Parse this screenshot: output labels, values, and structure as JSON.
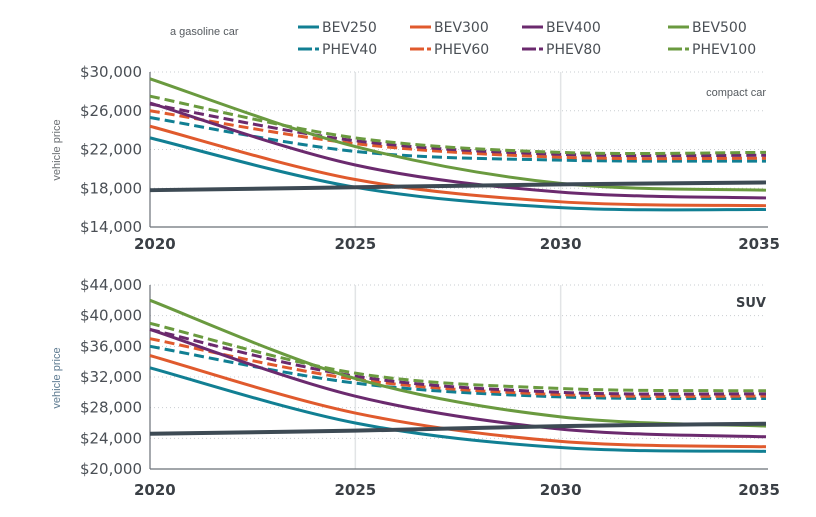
{
  "chart_data": [
    {
      "type": "line",
      "title": "compact car",
      "xlabel": "",
      "ylabel": "vehicle price",
      "x": [
        2020,
        2025,
        2030,
        2035
      ],
      "xlim": [
        2020,
        2035
      ],
      "ylim": [
        14000,
        30000
      ],
      "y_ticks": [
        14000,
        18000,
        22000,
        26000,
        30000
      ],
      "y_tick_labels": [
        "$14,000",
        "$18,000",
        "$22,000",
        "$26,000",
        "$30,000"
      ],
      "x_tick_labels": [
        "2020",
        "2025",
        "2030",
        "2035"
      ],
      "grid": "horizontal dotted, vertical at 2025 and 2030",
      "series": [
        {
          "name": "a gasoline car",
          "style": "solid-thick",
          "color": "#3d4a54",
          "values": [
            17800,
            18100,
            18400,
            18600
          ]
        },
        {
          "name": "BEV250",
          "style": "solid",
          "color": "#117f93",
          "values": [
            23200,
            18100,
            16000,
            15800
          ]
        },
        {
          "name": "BEV300",
          "style": "solid",
          "color": "#e05a2d",
          "values": [
            24400,
            18900,
            16600,
            16200
          ]
        },
        {
          "name": "BEV400",
          "style": "solid",
          "color": "#6b2a6e",
          "values": [
            26800,
            20400,
            17600,
            17000
          ]
        },
        {
          "name": "BEV500",
          "style": "solid",
          "color": "#6a9a3f",
          "values": [
            29300,
            22300,
            18500,
            17800
          ]
        },
        {
          "name": "PHEV40",
          "style": "dashed",
          "color": "#117f93",
          "values": [
            25300,
            21800,
            20900,
            20800
          ]
        },
        {
          "name": "PHEV60",
          "style": "dashed",
          "color": "#e05a2d",
          "values": [
            26000,
            22600,
            21200,
            21100
          ]
        },
        {
          "name": "PHEV80",
          "style": "dashed",
          "color": "#6b2a6e",
          "values": [
            26700,
            22900,
            21500,
            21400
          ]
        },
        {
          "name": "PHEV100",
          "style": "dashed",
          "color": "#6a9a3f",
          "values": [
            27500,
            23200,
            21700,
            21700
          ]
        }
      ]
    },
    {
      "type": "line",
      "title": "SUV",
      "xlabel": "",
      "ylabel": "vehicle price",
      "x": [
        2020,
        2025,
        2030,
        2035
      ],
      "xlim": [
        2020,
        2035
      ],
      "ylim": [
        20000,
        44000
      ],
      "y_ticks": [
        20000,
        24000,
        28000,
        32000,
        36000,
        40000,
        44000
      ],
      "y_tick_labels": [
        "$20,000",
        "$24,000",
        "$28,000",
        "$32,000",
        "$36,000",
        "$40,000",
        "$44,000"
      ],
      "x_tick_labels": [
        "2020",
        "2025",
        "2030",
        "2035"
      ],
      "grid": "horizontal dotted, vertical at 2025 and 2030",
      "series": [
        {
          "name": "a gasoline car",
          "style": "solid-thick",
          "color": "#3d4a54",
          "values": [
            24600,
            25000,
            25600,
            25900
          ]
        },
        {
          "name": "BEV250",
          "style": "solid",
          "color": "#117f93",
          "values": [
            33200,
            26000,
            22800,
            22300
          ]
        },
        {
          "name": "BEV300",
          "style": "solid",
          "color": "#e05a2d",
          "values": [
            34800,
            27300,
            23600,
            22900
          ]
        },
        {
          "name": "BEV400",
          "style": "solid",
          "color": "#6b2a6e",
          "values": [
            38200,
            29500,
            25200,
            24200
          ]
        },
        {
          "name": "BEV500",
          "style": "solid",
          "color": "#6a9a3f",
          "values": [
            42000,
            31800,
            26800,
            25600
          ]
        },
        {
          "name": "PHEV40",
          "style": "dashed",
          "color": "#117f93",
          "values": [
            36000,
            31200,
            29400,
            29200
          ]
        },
        {
          "name": "PHEV60",
          "style": "dashed",
          "color": "#e05a2d",
          "values": [
            37000,
            31700,
            29700,
            29500
          ]
        },
        {
          "name": "PHEV80",
          "style": "dashed",
          "color": "#6b2a6e",
          "values": [
            38200,
            32100,
            30000,
            29800
          ]
        },
        {
          "name": "PHEV100",
          "style": "dashed",
          "color": "#6a9a3f",
          "values": [
            39000,
            32500,
            30500,
            30200
          ]
        }
      ]
    }
  ],
  "legend": {
    "gas_label": "a gasoline car",
    "placement": "top",
    "items": [
      {
        "name": "BEV250",
        "style": "solid",
        "color": "#117f93"
      },
      {
        "name": "BEV300",
        "style": "solid",
        "color": "#e05a2d"
      },
      {
        "name": "BEV400",
        "style": "solid",
        "color": "#6b2a6e"
      },
      {
        "name": "BEV500",
        "style": "solid",
        "color": "#6a9a3f"
      },
      {
        "name": "PHEV40",
        "style": "dashed",
        "color": "#117f93"
      },
      {
        "name": "PHEV60",
        "style": "dashed",
        "color": "#e05a2d"
      },
      {
        "name": "PHEV80",
        "style": "dashed",
        "color": "#6b2a6e"
      },
      {
        "name": "PHEV100",
        "style": "dashed",
        "color": "#6a9a3f"
      }
    ]
  }
}
